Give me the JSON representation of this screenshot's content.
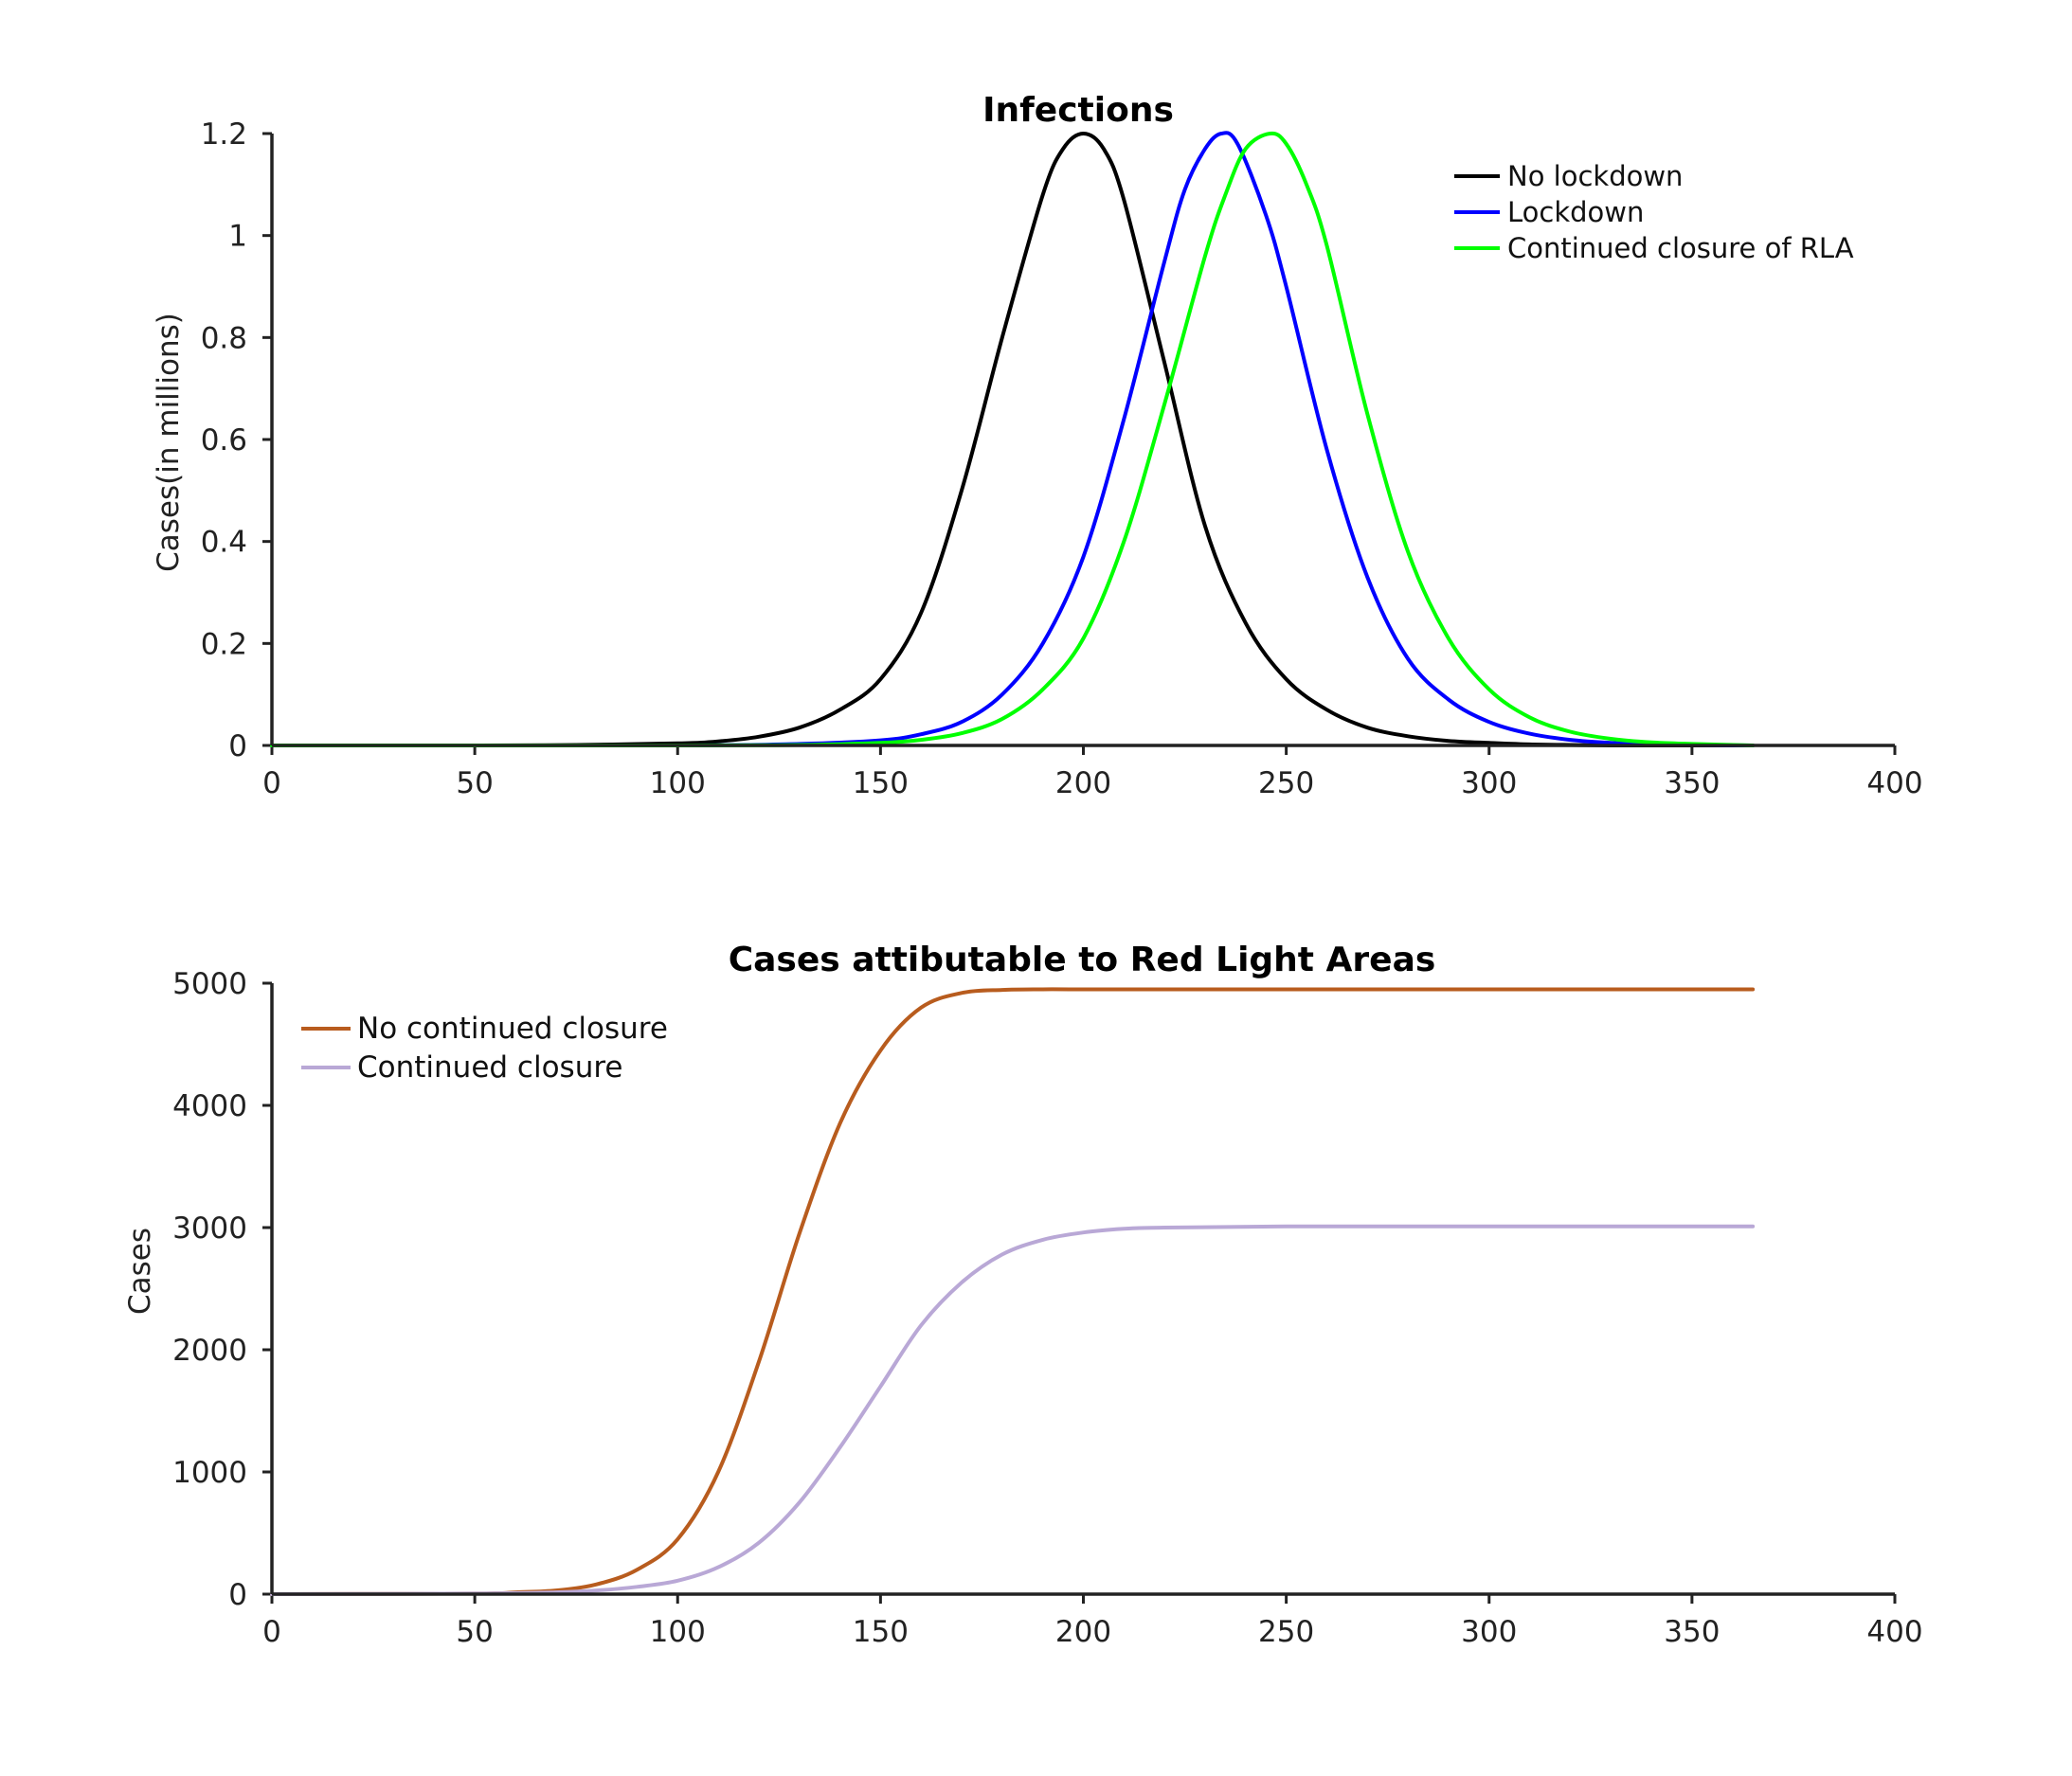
{
  "chart_data": [
    {
      "type": "line",
      "title": "Infections",
      "xlabel": "",
      "ylabel": "Cases(in millions)",
      "xlim": [
        0,
        400
      ],
      "ylim": [
        0,
        1.2
      ],
      "xticks": [
        0,
        50,
        100,
        150,
        200,
        250,
        300,
        350,
        400
      ],
      "yticks": [
        0,
        0.2,
        0.4,
        0.6,
        0.8,
        1,
        1.2
      ],
      "xtick_labels": [
        "0",
        "50",
        "100",
        "150",
        "200",
        "250",
        "300",
        "350",
        "400"
      ],
      "ytick_labels": [
        "0",
        "0.2",
        "0.4",
        "0.6",
        "0.8",
        "1",
        "1.2"
      ],
      "legend_position": "top-right",
      "grid": false,
      "series": [
        {
          "name": "No lockdown",
          "color": "#000000",
          "x": [
            0,
            50,
            75,
            100,
            110,
            120,
            130,
            140,
            150,
            160,
            170,
            180,
            190,
            195,
            200,
            205,
            210,
            220,
            230,
            240,
            250,
            260,
            270,
            280,
            290,
            300,
            310,
            320,
            330,
            340,
            350,
            365
          ],
          "y": [
            0,
            0,
            0.001,
            0.004,
            0.008,
            0.017,
            0.035,
            0.07,
            0.13,
            0.26,
            0.5,
            0.8,
            1.08,
            1.17,
            1.2,
            1.17,
            1.07,
            0.75,
            0.43,
            0.24,
            0.13,
            0.07,
            0.035,
            0.018,
            0.009,
            0.005,
            0.002,
            0.001,
            0,
            0,
            0,
            0
          ]
        },
        {
          "name": "Lockdown",
          "color": "#0000ff",
          "x": [
            0,
            100,
            130,
            150,
            160,
            170,
            180,
            190,
            200,
            210,
            220,
            225,
            230,
            234,
            238,
            245,
            250,
            260,
            270,
            280,
            290,
            300,
            310,
            320,
            330,
            340,
            350,
            365
          ],
          "y": [
            0,
            0,
            0.003,
            0.01,
            0.022,
            0.046,
            0.1,
            0.2,
            0.37,
            0.64,
            0.95,
            1.09,
            1.17,
            1.2,
            1.18,
            1.04,
            0.9,
            0.58,
            0.33,
            0.17,
            0.09,
            0.046,
            0.023,
            0.011,
            0.005,
            0.002,
            0.001,
            0
          ]
        },
        {
          "name": "Continued closure of RLA",
          "color": "#00ff00",
          "x": [
            0,
            100,
            130,
            150,
            160,
            170,
            180,
            190,
            200,
            210,
            220,
            230,
            235,
            240,
            246,
            250,
            255,
            260,
            270,
            280,
            290,
            300,
            310,
            320,
            330,
            340,
            350,
            365
          ],
          "y": [
            0,
            0,
            0.001,
            0.005,
            0.011,
            0.024,
            0.052,
            0.11,
            0.21,
            0.4,
            0.67,
            0.96,
            1.08,
            1.17,
            1.2,
            1.18,
            1.1,
            0.98,
            0.65,
            0.38,
            0.21,
            0.11,
            0.055,
            0.027,
            0.013,
            0.006,
            0.003,
            0
          ]
        }
      ]
    },
    {
      "type": "line",
      "title": "Cases attibutable to Red Light Areas",
      "xlabel": "",
      "ylabel": "Cases",
      "xlim": [
        0,
        400
      ],
      "ylim": [
        0,
        5000
      ],
      "xticks": [
        0,
        50,
        100,
        150,
        200,
        250,
        300,
        350,
        400
      ],
      "yticks": [
        0,
        1000,
        2000,
        3000,
        4000,
        5000
      ],
      "xtick_labels": [
        "0",
        "50",
        "100",
        "150",
        "200",
        "250",
        "300",
        "350",
        "400"
      ],
      "ytick_labels": [
        "0",
        "1000",
        "2000",
        "3000",
        "4000",
        "5000"
      ],
      "legend_position": "top-left",
      "grid": false,
      "series": [
        {
          "name": "No continued closure",
          "color": "#b85c1e",
          "x": [
            0,
            50,
            60,
            70,
            80,
            90,
            100,
            110,
            120,
            130,
            140,
            150,
            160,
            170,
            180,
            190,
            200,
            250,
            300,
            365
          ],
          "y": [
            0,
            5,
            15,
            30,
            80,
            200,
            450,
            1000,
            1900,
            2950,
            3850,
            4450,
            4800,
            4920,
            4945,
            4950,
            4950,
            4950,
            4950,
            4950
          ]
        },
        {
          "name": "Continued closure",
          "color": "#b9a8d6",
          "x": [
            0,
            50,
            70,
            80,
            90,
            100,
            110,
            120,
            130,
            140,
            150,
            160,
            170,
            180,
            190,
            200,
            210,
            220,
            250,
            300,
            365
          ],
          "y": [
            0,
            5,
            15,
            30,
            60,
            110,
            220,
            420,
            750,
            1200,
            1700,
            2200,
            2550,
            2780,
            2900,
            2960,
            2990,
            3000,
            3010,
            3010,
            3010
          ]
        }
      ]
    }
  ]
}
